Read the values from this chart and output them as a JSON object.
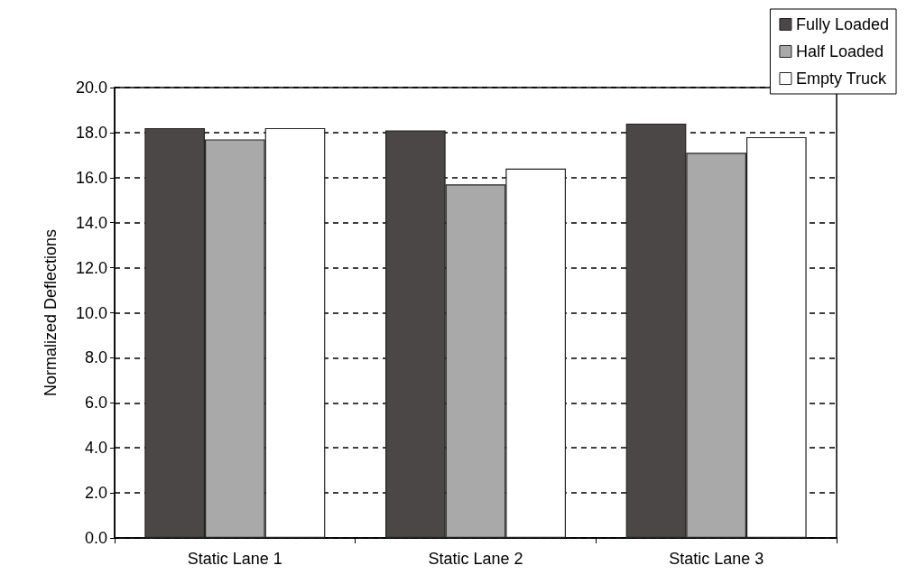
{
  "chart_data": {
    "type": "bar",
    "ylabel": "Normalized Deflections",
    "categories": [
      "Static Lane 1",
      "Static Lane 2",
      "Static Lane 3"
    ],
    "series": [
      {
        "name": "Fully Loaded",
        "color": "#4b4746",
        "values": [
          18.2,
          18.1,
          18.4
        ]
      },
      {
        "name": "Half Loaded",
        "color": "#a9a9a9",
        "values": [
          17.7,
          15.7,
          17.1
        ]
      },
      {
        "name": "Empty Truck",
        "color": "#ffffff",
        "values": [
          18.2,
          16.4,
          17.8
        ]
      }
    ],
    "ylim": [
      0,
      20
    ],
    "yticks": [
      {
        "value": 0,
        "label": "0.0"
      },
      {
        "value": 2,
        "label": "2.0"
      },
      {
        "value": 4,
        "label": "4.0"
      },
      {
        "value": 6,
        "label": "6.0"
      },
      {
        "value": 8,
        "label": "8.0"
      },
      {
        "value": 10,
        "label": "10.0"
      },
      {
        "value": 12,
        "label": "12.0"
      },
      {
        "value": 14,
        "label": "14.0"
      },
      {
        "value": 16,
        "label": "16.0"
      },
      {
        "value": 18,
        "label": "18.0"
      },
      {
        "value": 20,
        "label": "20.0"
      }
    ],
    "grid": "y",
    "legend": "top right",
    "line_style": "dashed"
  }
}
